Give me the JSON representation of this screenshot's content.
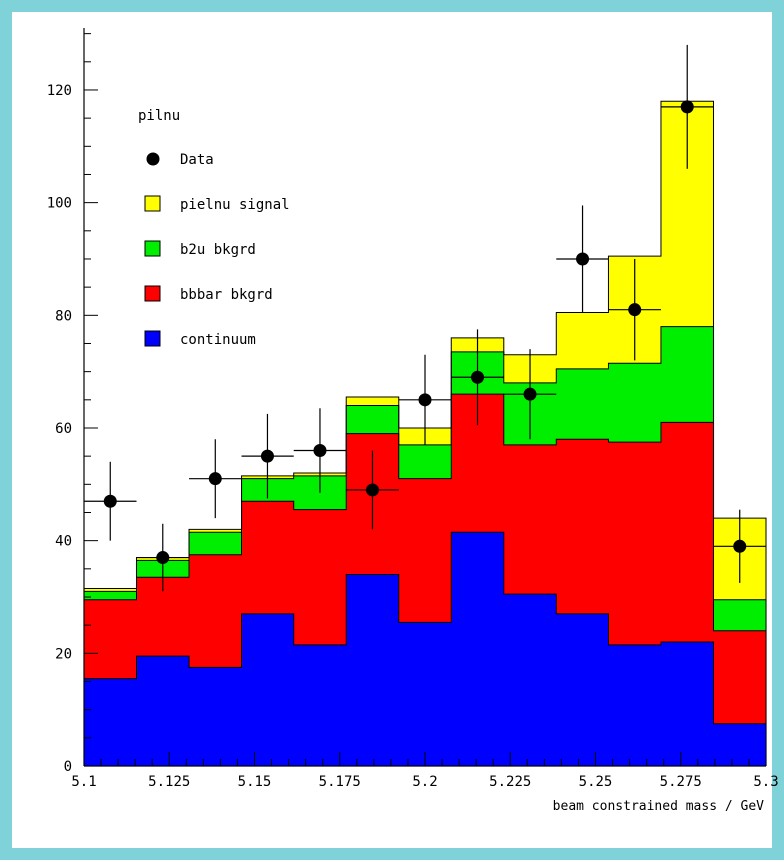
{
  "chart_data": {
    "type": "bar",
    "subtype": "stacked-histogram-with-data-points",
    "title": "pilnu",
    "xlabel": "beam constrained mass / GeV",
    "ylabel": "",
    "xlim": [
      5.1,
      5.3
    ],
    "ylim": [
      0,
      131
    ],
    "x_ticks": [
      "5.1",
      "5.125",
      "5.15",
      "5.175",
      "5.2",
      "5.225",
      "5.25",
      "5.275",
      "5.3"
    ],
    "y_ticks": [
      "0",
      "20",
      "40",
      "60",
      "80",
      "100",
      "120"
    ],
    "grid": false,
    "legend_position": "top-left",
    "bin_edges": [
      5.1,
      5.1154,
      5.1308,
      5.1462,
      5.1615,
      5.1769,
      5.1923,
      5.2077,
      5.2231,
      5.2385,
      5.2538,
      5.2692,
      5.2846,
      5.3
    ],
    "series": [
      {
        "name": "continuum",
        "color": "#0000ff",
        "values": [
          15.5,
          19.5,
          17.5,
          27,
          21.5,
          34,
          25.5,
          41.5,
          30.5,
          27,
          21.5,
          22,
          7.5
        ]
      },
      {
        "name": "bbbar bkgrd",
        "color": "#ff0000",
        "values": [
          14,
          14,
          20,
          20,
          24,
          25,
          25.5,
          24.5,
          26.5,
          31,
          36,
          39,
          16.5
        ]
      },
      {
        "name": "b2u bkgrd",
        "color": "#00ee00",
        "values": [
          1.5,
          3,
          4,
          4,
          6,
          5,
          6,
          7.5,
          11,
          12.5,
          14,
          17,
          5.5
        ]
      },
      {
        "name": "pielnu signal",
        "color": "#ffff00",
        "values": [
          0.5,
          0.5,
          0.5,
          0.5,
          0.5,
          1.5,
          3,
          2.5,
          5,
          10,
          19,
          40,
          14.5
        ]
      }
    ],
    "data_points": {
      "name": "Data",
      "x": [
        5.1077,
        5.1231,
        5.1385,
        5.1538,
        5.1692,
        5.1846,
        5.2,
        5.2154,
        5.2308,
        5.2462,
        5.2615,
        5.2769,
        5.2923
      ],
      "y": [
        47,
        37,
        51,
        55,
        56,
        49,
        65,
        69,
        66,
        90,
        81,
        117,
        39
      ],
      "yerr": [
        7,
        6,
        7,
        7.5,
        7.5,
        7,
        8,
        8.5,
        8,
        9.5,
        9,
        11,
        6.5
      ]
    },
    "legend": [
      {
        "label": "Data",
        "marker": "circle",
        "color": "#000000"
      },
      {
        "label": "pielnu signal",
        "marker": "square",
        "color": "#ffff00"
      },
      {
        "label": "b2u bkgrd",
        "marker": "square",
        "color": "#00ee00"
      },
      {
        "label": "bbbar bkgrd",
        "marker": "square",
        "color": "#ff0000"
      },
      {
        "label": "continuum",
        "marker": "square",
        "color": "#0000ff"
      }
    ]
  },
  "colors": {
    "frame_border": "#7fd3d8",
    "background": "#ffffff",
    "axis": "#000000"
  }
}
